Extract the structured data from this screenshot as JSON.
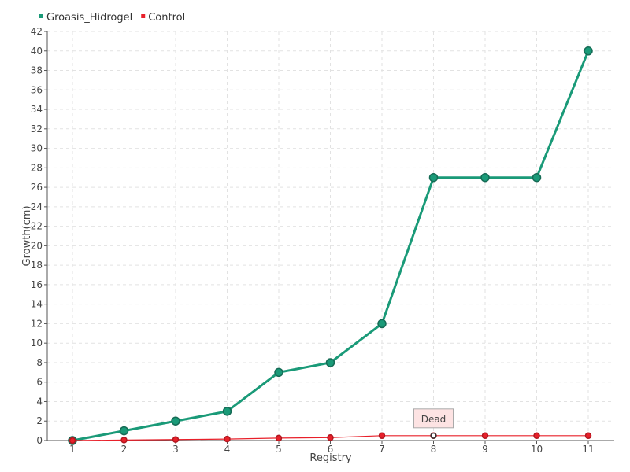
{
  "chart_data": {
    "type": "line",
    "title": "",
    "xlabel": "Registry",
    "ylabel": "Growth(cm)",
    "categories": [
      "1",
      "2",
      "3",
      "4",
      "5",
      "6",
      "7",
      "8",
      "9",
      "10",
      "11"
    ],
    "ylim": [
      0,
      42
    ],
    "ytick_step": 2,
    "grid": true,
    "legend_position": "top-left",
    "series": [
      {
        "name": "Groasis_Hidrogel",
        "color": "#1a9a78",
        "values": [
          0,
          1,
          2,
          3,
          7,
          8,
          12,
          27,
          27,
          27,
          40
        ]
      },
      {
        "name": "Control",
        "color": "#e8202a",
        "values": [
          0,
          0.05,
          0.1,
          0.15,
          0.25,
          0.3,
          0.5,
          0.5,
          0.5,
          0.5,
          0.5
        ]
      }
    ],
    "annotations": [
      {
        "text": "Dead",
        "series": 1,
        "category_index": 7
      }
    ]
  }
}
